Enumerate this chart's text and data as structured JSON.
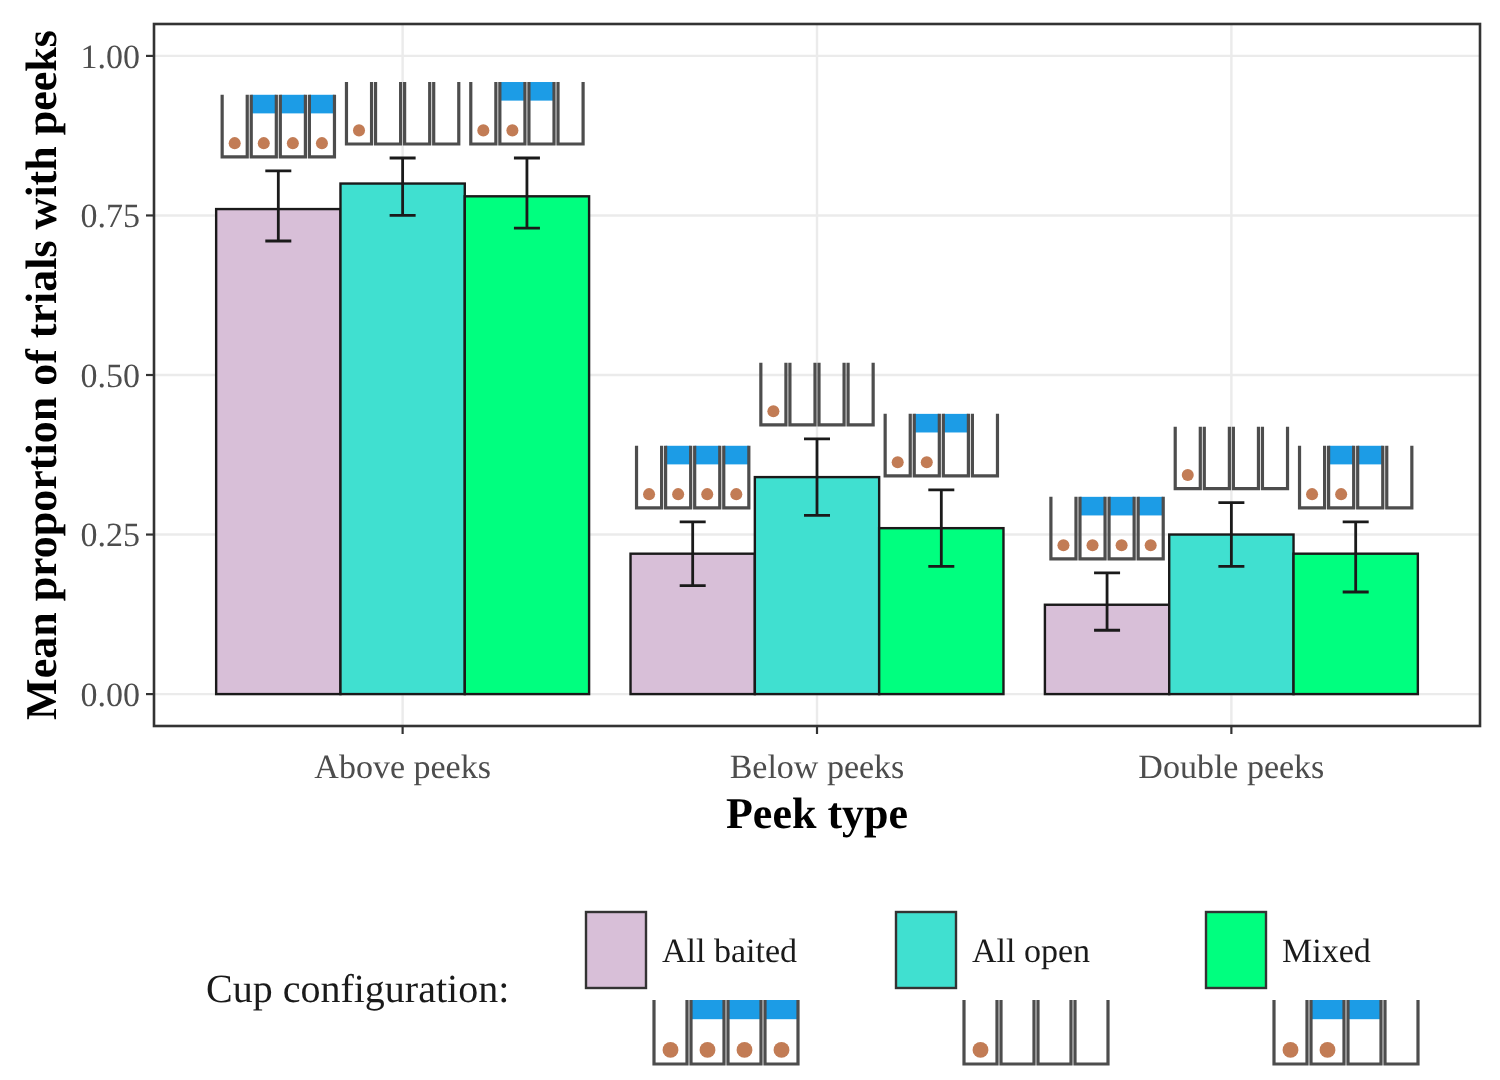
{
  "chart_data": {
    "type": "bar",
    "xlabel": "Peek type",
    "ylabel": "Mean proportion of trials with peeks",
    "legend_title": "Cup configuration:",
    "categories": [
      "Above peeks",
      "Below peeks",
      "Double peeks"
    ],
    "series": [
      {
        "name": "All baited",
        "color": "#d8bfd8",
        "values": [
          0.76,
          0.22,
          0.14
        ],
        "errors": [
          [
            0.71,
            0.82
          ],
          [
            0.17,
            0.27
          ],
          [
            0.1,
            0.19
          ]
        ]
      },
      {
        "name": "All open",
        "color": "#40e0d0",
        "values": [
          0.8,
          0.34,
          0.25
        ],
        "errors": [
          [
            0.75,
            0.84
          ],
          [
            0.28,
            0.4
          ],
          [
            0.2,
            0.3
          ]
        ]
      },
      {
        "name": "Mixed",
        "color": "#00ff7f",
        "values": [
          0.78,
          0.26,
          0.22
        ],
        "errors": [
          [
            0.73,
            0.84
          ],
          [
            0.2,
            0.32
          ],
          [
            0.16,
            0.27
          ]
        ]
      }
    ],
    "ylim": [
      -0.05,
      1.05
    ],
    "yticks": [
      {
        "value": 0,
        "label": "0.00"
      },
      {
        "value": 0.25,
        "label": "0.25"
      },
      {
        "value": 0.5,
        "label": "0.50"
      },
      {
        "value": 0.75,
        "label": "0.75"
      },
      {
        "value": 1,
        "label": "1.00"
      }
    ],
    "grid": true,
    "legend": "bottom"
  }
}
